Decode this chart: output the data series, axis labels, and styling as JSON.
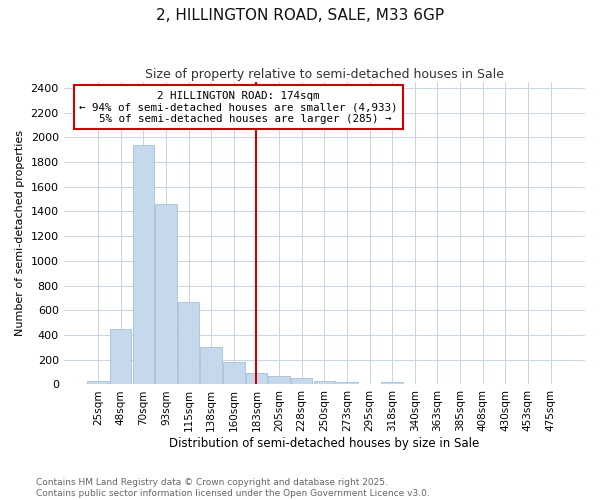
{
  "title": "2, HILLINGTON ROAD, SALE, M33 6GP",
  "subtitle": "Size of property relative to semi-detached houses in Sale",
  "xlabel": "Distribution of semi-detached houses by size in Sale",
  "ylabel": "Number of semi-detached properties",
  "bin_labels": [
    "25sqm",
    "48sqm",
    "70sqm",
    "93sqm",
    "115sqm",
    "138sqm",
    "160sqm",
    "183sqm",
    "205sqm",
    "228sqm",
    "250sqm",
    "273sqm",
    "295sqm",
    "318sqm",
    "340sqm",
    "363sqm",
    "385sqm",
    "408sqm",
    "430sqm",
    "453sqm",
    "475sqm"
  ],
  "bin_values": [
    25,
    450,
    1940,
    1460,
    670,
    305,
    185,
    95,
    65,
    50,
    30,
    20,
    5,
    20,
    3,
    2,
    1,
    1,
    1,
    1,
    1
  ],
  "bar_color": "#c5d8ec",
  "bar_edge_color": "#9ab8d0",
  "grid_color": "#c8d4e0",
  "background_color": "#ffffff",
  "red_line_color": "#cc0000",
  "annotation_box_color": "#ffffff",
  "annotation_box_edge": "#cc0000",
  "annotation_line_label": "2 HILLINGTON ROAD: 174sqm",
  "annotation_smaller_pct": "94%",
  "annotation_smaller_n": "4,933",
  "annotation_larger_pct": "5%",
  "annotation_larger_n": "285",
  "ylim": [
    0,
    2450
  ],
  "yticks": [
    0,
    200,
    400,
    600,
    800,
    1000,
    1200,
    1400,
    1600,
    1800,
    2000,
    2200,
    2400
  ],
  "footer_text": "Contains HM Land Registry data © Crown copyright and database right 2025.\nContains public sector information licensed under the Open Government Licence v3.0."
}
